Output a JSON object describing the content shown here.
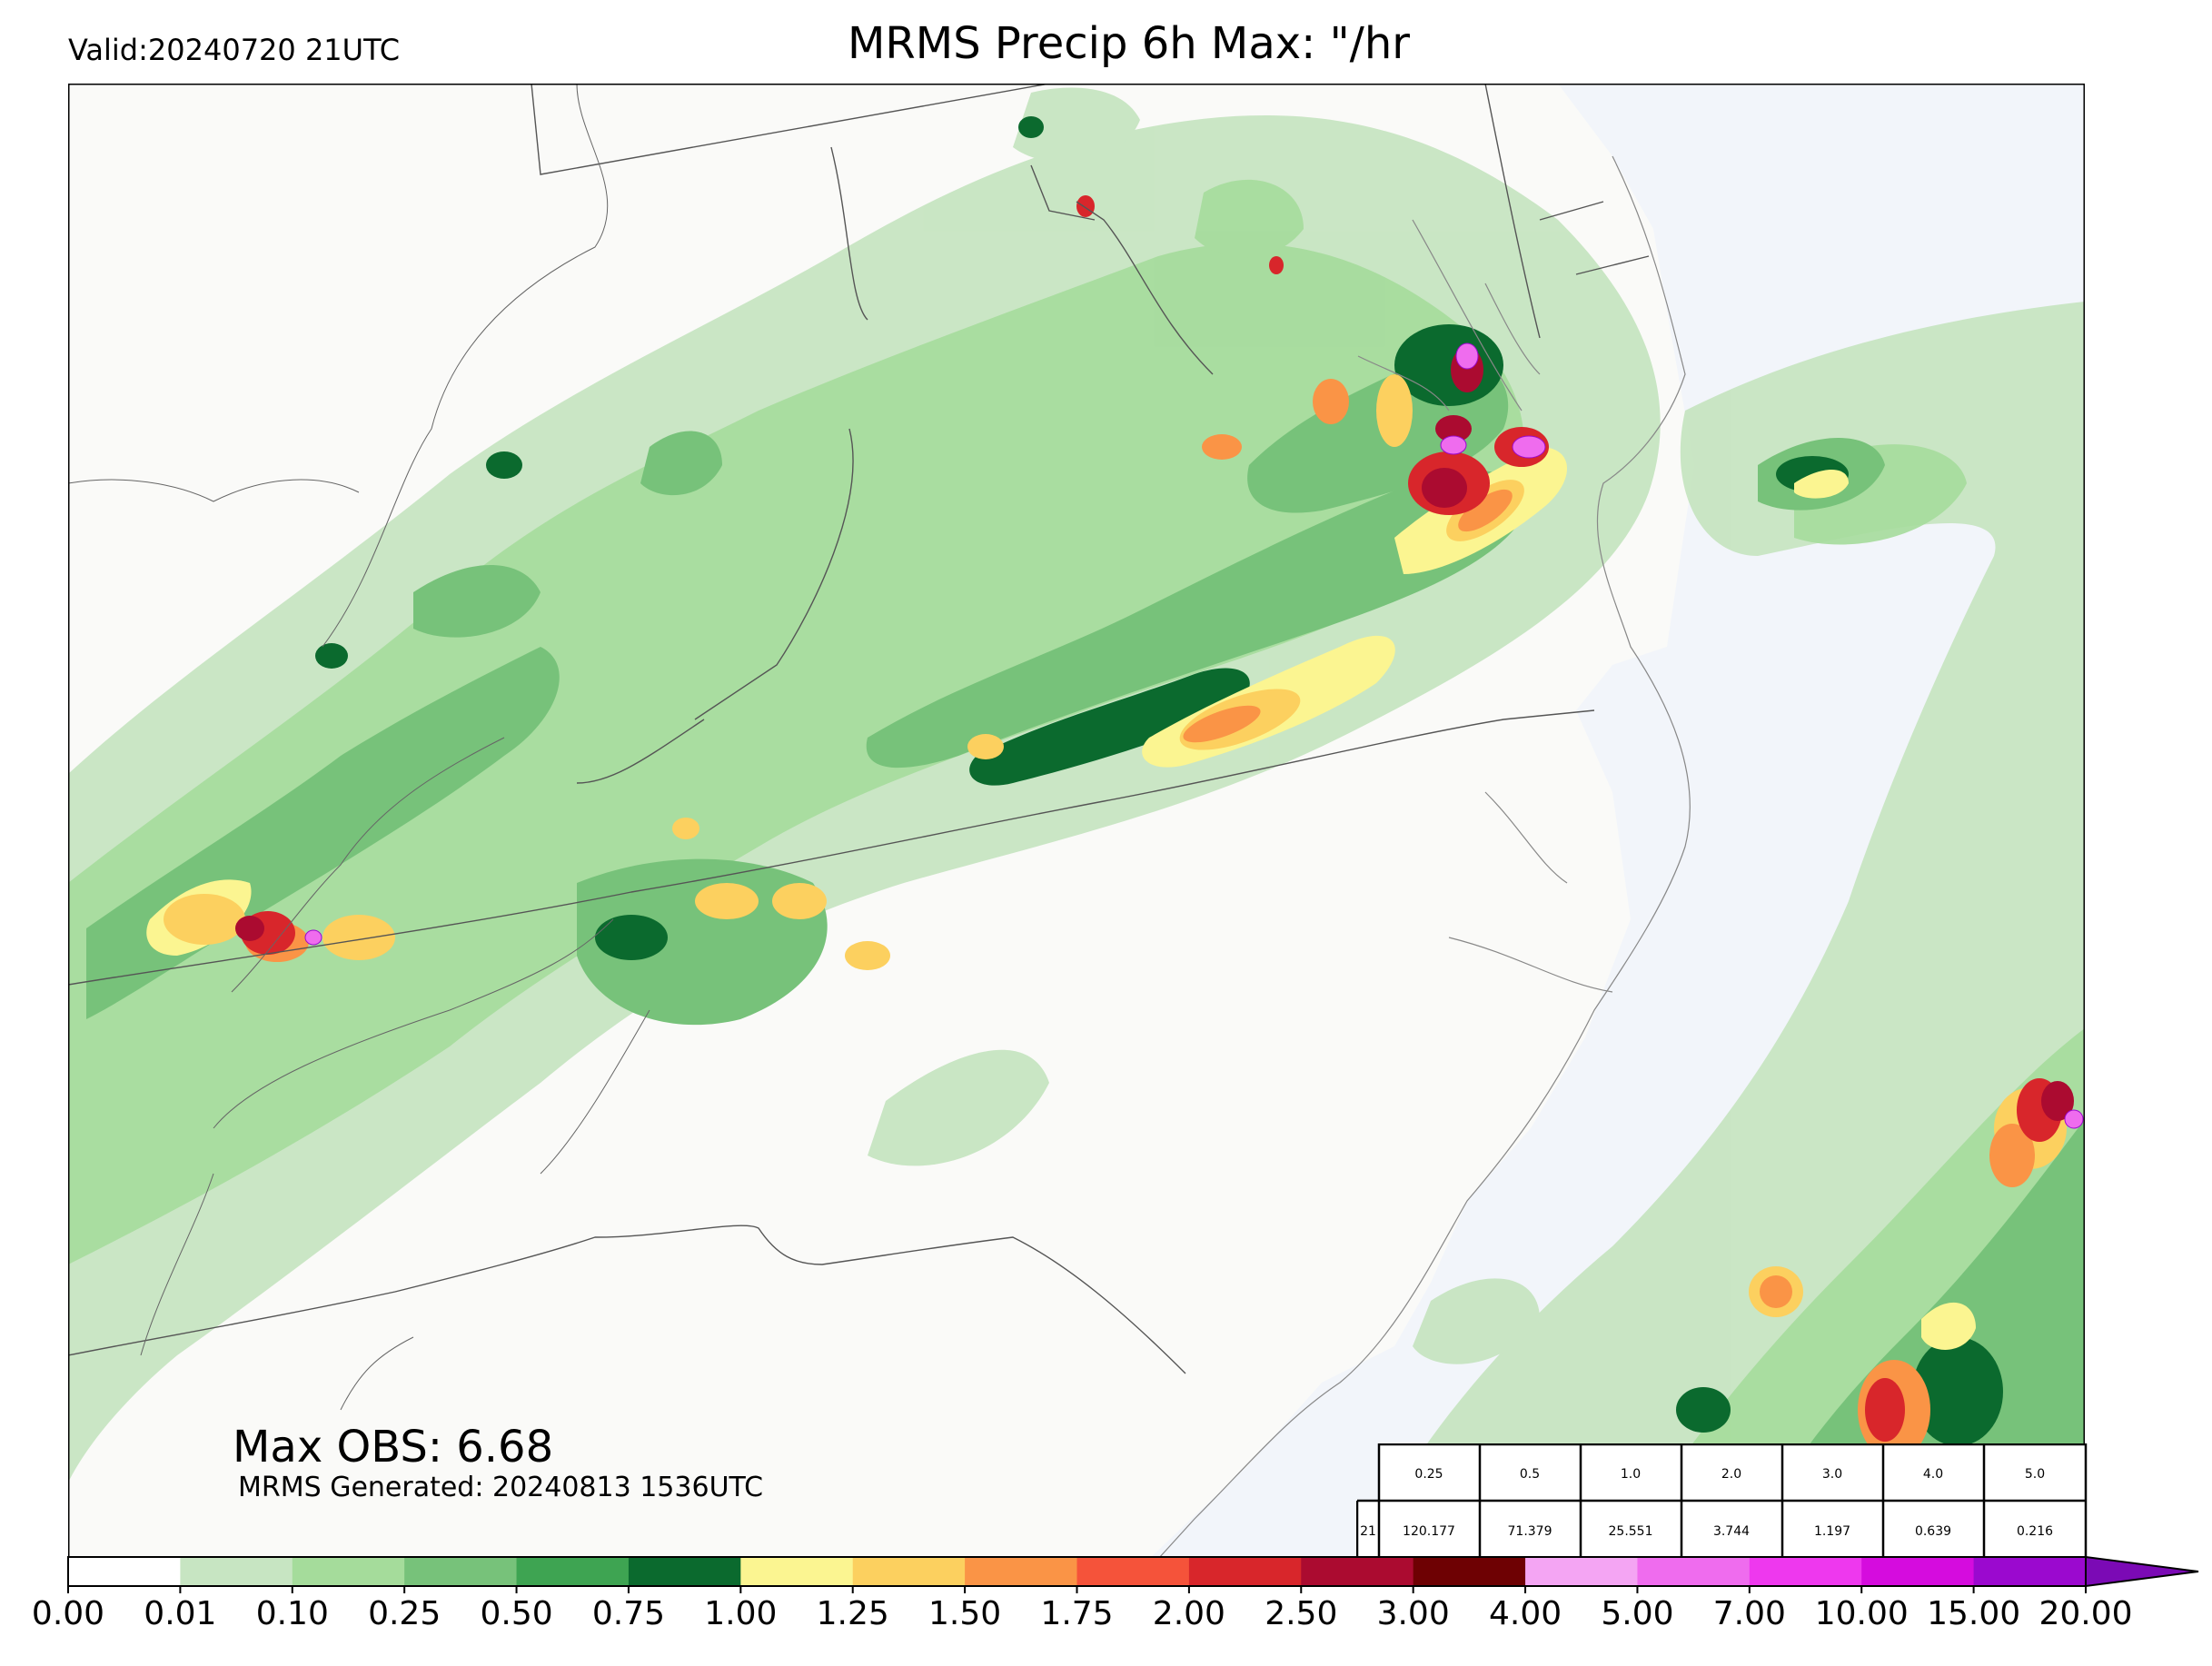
{
  "valid_label": "Valid:20240720 21UTC",
  "title": "MRMS Precip 6h Max: \"/hr",
  "max_obs_label": "Max OBS: 6.68",
  "generated_label": "MRMS Generated: 20240813 1536UTC",
  "stats_table": {
    "thresholds": [
      "0.25",
      "0.5",
      "1.0",
      "2.0",
      "3.0",
      "4.0",
      "5.0"
    ],
    "row_label": "21",
    "values": [
      "120.177",
      "71.379",
      "25.551",
      "3.744",
      "1.197",
      "0.639",
      "0.216"
    ]
  },
  "colorbar": {
    "ticks": [
      "0.00",
      "0.01",
      "0.10",
      "0.25",
      "0.50",
      "0.75",
      "1.00",
      "1.25",
      "1.50",
      "1.75",
      "2.00",
      "2.50",
      "3.00",
      "4.00",
      "5.00",
      "7.00",
      "10.00",
      "15.00",
      "20.00"
    ],
    "colors": [
      "#ffffff",
      "#c7e5c2",
      "#a5dc9b",
      "#77c27a",
      "#3ea452",
      "#0b6a2e",
      "#fbf591",
      "#fcd05f",
      "#fa9446",
      "#f5533a",
      "#d8262b",
      "#ab0b30",
      "#6e0103",
      "#f4a5f3",
      "#ef6cee",
      "#ee38ee",
      "#d50cde",
      "#9b09cf"
    ],
    "extend_color": "#7b0ab5"
  },
  "map": {
    "land_color": "#fafaf8",
    "ocean_color": "#f2f5fa",
    "precip_palette": {
      "light": "#c7e5c2",
      "light2": "#a5dc9b",
      "mid": "#77c27a",
      "mid2": "#3ea452",
      "dark": "#0b6a2e",
      "yellow": "#fbf591",
      "gold": "#fcd05f",
      "orange": "#fa9446",
      "red": "#d8262b",
      "maroon": "#ab0b30",
      "pink": "#ef6cee"
    }
  }
}
